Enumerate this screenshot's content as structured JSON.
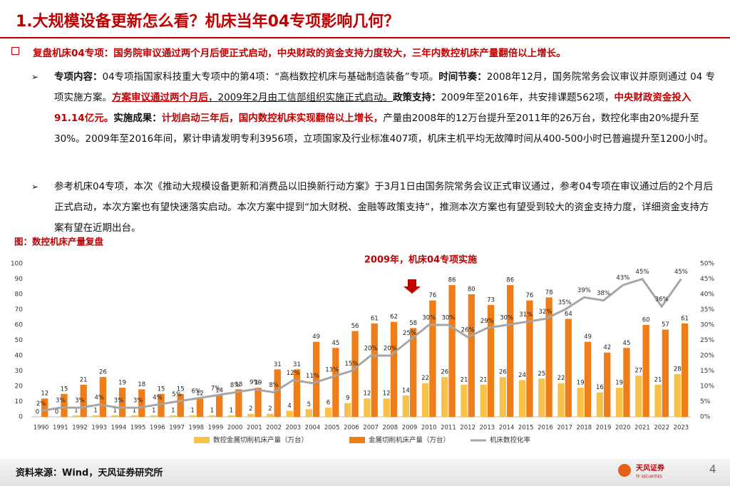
{
  "header": {
    "title": "1.大规模设备更新怎么看？机床当年04专项影响几何？"
  },
  "lead": "复盘机床04专项：国务院审议通过两个月后便正式启动，中央财政的资金支持力度较大，三年内数控机床产量翻倍以上增长。",
  "bullets": [
    [
      "专项内容：",
      "04专项指国家科技重大专项中的第4项：“高档数控机床与基础制造装备”专项。",
      "时间节奏：",
      "2008年12月，国务院常务会议审议并原则通过 04 专项实施方案。",
      "方案审议通过两个月后",
      "，2009年2月由工信部组织实施正式启动。",
      "政策支持：",
      "2009年至2016年，共安排课题562项，",
      "中央财政资金投入91.14亿元。",
      "实施成果：",
      "计划启动三年后，国内数控机床实现翻倍以上增长，",
      "产量由2008年的12万台提升至2011年的26万台，数控化率由20%提升至30%。2009年至2016年间，累计申请发明专利3956项，立项国家及行业标准407项，机床主机平均无故障时间从400-500小时已普遍提升至1200小时。"
    ],
    [
      "参考机床04专项，本次《推动大规模设备更新和消费品以旧换新行动方案》于3月1日由国务院常务会议正式审议通过，参考04专项在审议通过后的2个月后正式启动，本次方案也有望快速落实启动。本次方案中提到“加大财税、金融等政策支持”，推测本次方案也有望受到较大的资金支持力度，详细资金支持方案有望在近期出台。"
    ]
  ],
  "chart_data": {
    "type": "bar",
    "title": "图：数控机床产量复盘",
    "annotation": "2009年，机床04专项实施",
    "categories": [
      "1990",
      "1991",
      "1992",
      "1993",
      "1994",
      "1995",
      "1996",
      "1997",
      "1998",
      "1999",
      "2000",
      "2001",
      "2002",
      "2003",
      "2004",
      "2005",
      "2006",
      "2007",
      "2008",
      "2009",
      "2010",
      "2011",
      "2012",
      "2013",
      "2014",
      "2015",
      "2016",
      "2017",
      "2018",
      "2019",
      "2020",
      "2021",
      "2022",
      "2023"
    ],
    "series": [
      {
        "name": "数控金属切削机床产量（万台）",
        "color": "#f8c24a",
        "values": [
          0,
          0,
          1,
          1,
          1,
          1,
          1,
          1,
          1,
          1,
          1,
          2,
          2,
          4,
          5,
          6,
          9,
          12,
          12,
          14,
          22,
          26,
          21,
          21,
          26,
          24,
          25,
          22,
          19,
          16,
          19,
          27,
          21,
          28
        ]
      },
      {
        "name": "金属切削机床产量（万台）",
        "color": "#ee7d1a",
        "values": [
          12,
          15,
          21,
          26,
          19,
          18,
          15,
          15,
          12,
          14,
          18,
          19,
          31,
          31,
          49,
          45,
          56,
          61,
          62,
          58,
          76,
          86,
          80,
          73,
          86,
          76,
          78,
          64,
          49,
          42,
          45,
          60,
          57,
          61
        ]
      },
      {
        "name": "机床数控化率",
        "color": "#a6a6a6",
        "type": "line",
        "axis": "y2",
        "values": [
          2,
          3,
          3,
          4,
          3,
          3,
          4,
          5,
          6,
          7,
          8,
          9,
          8,
          12,
          11,
          13,
          15,
          20,
          20,
          25,
          30,
          30,
          26,
          29,
          30,
          31,
          32,
          35,
          39,
          38,
          43,
          45,
          36,
          45
        ],
        "value_labels": [
          "2%",
          "3%",
          "3%",
          "4%",
          "3%",
          "3%",
          "4%",
          "5%",
          "6%",
          "7%",
          "8%",
          "9%",
          "8%",
          "12%",
          "11%",
          "13%",
          "15%",
          "20%",
          "20%",
          "25%",
          "30%",
          "30%",
          "26%",
          "29%",
          "30%",
          "31%",
          "32%",
          "35%",
          "39%",
          "38%",
          "43%",
          "45%",
          "36%",
          "45%"
        ]
      }
    ],
    "ylim": [
      0,
      100
    ],
    "yticks": [
      0,
      10,
      20,
      30,
      40,
      50,
      60,
      70,
      80,
      90,
      100
    ],
    "y2lim": [
      0,
      50
    ],
    "y2ticks": [
      {
        "value": 0,
        "label": "0%"
      },
      {
        "value": 5,
        "label": "5%"
      },
      {
        "value": 10,
        "label": "10%"
      },
      {
        "value": 15,
        "label": "15%"
      },
      {
        "value": 20,
        "label": "20%"
      },
      {
        "value": 25,
        "label": "25%"
      },
      {
        "value": 30,
        "label": "30%"
      },
      {
        "value": 35,
        "label": "35%"
      },
      {
        "value": 40,
        "label": "40%"
      },
      {
        "value": 45,
        "label": "45%"
      },
      {
        "value": 50,
        "label": "50%"
      }
    ],
    "legend": "bottom"
  },
  "footer": {
    "source": "资料来源：Wind，天风证券研究所",
    "page": "4",
    "logo": "天风证券",
    "logo_en": "TF SECURITIES"
  }
}
